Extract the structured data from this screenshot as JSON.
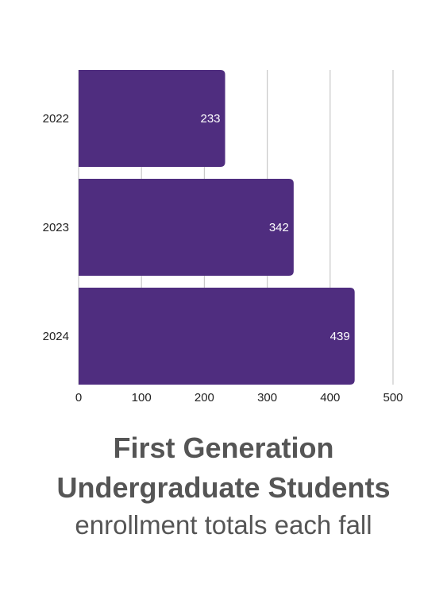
{
  "chart_data": {
    "type": "bar",
    "orientation": "horizontal",
    "categories": [
      "2022",
      "2023",
      "2024"
    ],
    "values": [
      233,
      342,
      439
    ],
    "data_labels": [
      "233",
      "342",
      "439"
    ],
    "xlim": [
      0,
      500
    ],
    "x_ticks": [
      "0",
      "100",
      "200",
      "300",
      "400",
      "500"
    ],
    "grid": "vertical",
    "bar_color": "#4f2d7f",
    "label_color": "#ffffff",
    "grid_color": "#c8c8c8"
  },
  "caption": {
    "title_line_1": "First Generation",
    "title_line_2": "Undergraduate Students",
    "subtitle": "enrollment totals each fall",
    "color": "#555555"
  }
}
